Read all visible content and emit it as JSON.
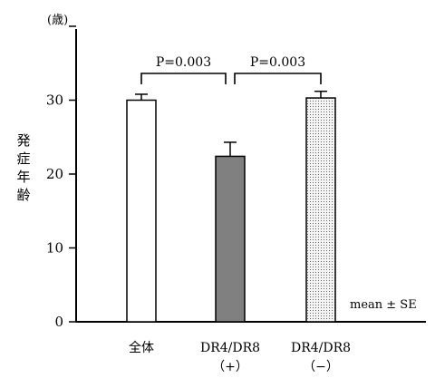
{
  "chart_data": {
    "type": "bar",
    "unit_label": "(歳)",
    "ylabel_chars": [
      "発",
      "症",
      "年",
      "齢"
    ],
    "ylim": [
      0,
      40
    ],
    "yticks": [
      0,
      10,
      20,
      30
    ],
    "categories": [
      {
        "line1": "全体",
        "line2": "",
        "value": 30.0,
        "error": 0.8,
        "fill": "white"
      },
      {
        "line1": "DR4/DR8",
        "line2": "（+）",
        "value": 22.4,
        "error": 1.9,
        "fill": "gray"
      },
      {
        "line1": "DR4/DR8",
        "line2": "（−）",
        "value": 30.3,
        "error": 0.9,
        "fill": "dotted"
      }
    ],
    "comparisons": [
      {
        "from": 0,
        "to": 1,
        "label": "P=0.003"
      },
      {
        "from": 1,
        "to": 2,
        "label": "P=0.003"
      }
    ],
    "note": "mean ± SE",
    "colors": {
      "white": "#ffffff",
      "gray": "#808080",
      "dotted": "#e6e6e6",
      "axis": "#000000"
    }
  }
}
